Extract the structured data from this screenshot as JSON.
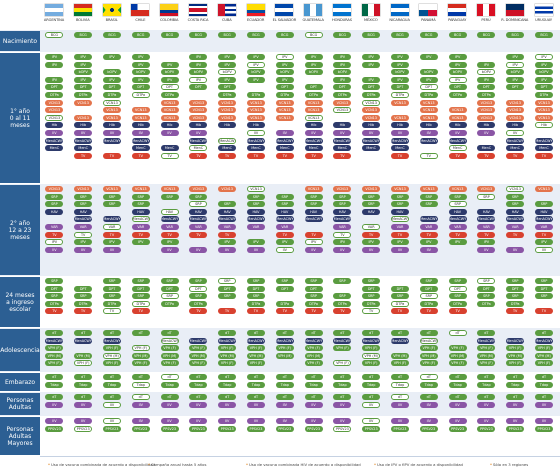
{
  "countries": [
    {
      "name": "ARGENTINA",
      "colors": [
        "#74acdf",
        "#ffffff",
        "#74acdf"
      ],
      "dir": "h"
    },
    {
      "name": "BOLIVIA",
      "colors": [
        "#d52b1e",
        "#f9e300",
        "#007934"
      ],
      "dir": "h"
    },
    {
      "name": "BRASIL",
      "colors": [
        "#009c3b",
        "#ffdf00",
        "#009c3b"
      ],
      "dir": "brazil"
    },
    {
      "name": "CHILE",
      "colors": [
        "#ffffff",
        "#d52b1e"
      ],
      "dir": "chile"
    },
    {
      "name": "COLOMBIA",
      "colors": [
        "#fcd116",
        "#fcd116",
        "#003893",
        "#ce1126"
      ],
      "dir": "h"
    },
    {
      "name": "COSTA RICA",
      "colors": [
        "#002b7f",
        "#ffffff",
        "#ce1126",
        "#ce1126",
        "#ffffff",
        "#002b7f"
      ],
      "dir": "h"
    },
    {
      "name": "CUBA",
      "colors": [
        "#002a8f",
        "#ffffff",
        "#002a8f",
        "#ffffff",
        "#002a8f"
      ],
      "dir": "cuba"
    },
    {
      "name": "ECUADOR",
      "colors": [
        "#ffdd00",
        "#ffdd00",
        "#034ea2",
        "#ed1c24"
      ],
      "dir": "h"
    },
    {
      "name": "EL SALVADOR",
      "colors": [
        "#0047ab",
        "#ffffff",
        "#0047ab"
      ],
      "dir": "h"
    },
    {
      "name": "GUATEMALA",
      "colors": [
        "#4997d0",
        "#ffffff",
        "#4997d0"
      ],
      "dir": "v"
    },
    {
      "name": "HONDURAS",
      "colors": [
        "#0073cf",
        "#ffffff",
        "#0073cf"
      ],
      "dir": "h"
    },
    {
      "name": "MÉXICO",
      "colors": [
        "#006847",
        "#ffffff",
        "#ce1126"
      ],
      "dir": "v"
    },
    {
      "name": "NICARAGUA",
      "colors": [
        "#0067c6",
        "#ffffff",
        "#0067c6"
      ],
      "dir": "h"
    },
    {
      "name": "PANAMÁ",
      "colors": [
        "#ffffff",
        "#d21034",
        "#005293",
        "#ffffff"
      ],
      "dir": "quad"
    },
    {
      "name": "PARAGUAY",
      "colors": [
        "#d52b1e",
        "#ffffff",
        "#0038a8"
      ],
      "dir": "h"
    },
    {
      "name": "PERÚ",
      "colors": [
        "#d91023",
        "#ffffff",
        "#d91023"
      ],
      "dir": "v"
    },
    {
      "name": "R. DOMINICANA",
      "colors": [
        "#002d62",
        "#ce1126",
        "#ce1126",
        "#002d62"
      ],
      "dir": "quad"
    },
    {
      "name": "URUGUAY",
      "colors": [
        "#ffffff",
        "#0038a8",
        "#ffffff",
        "#0038a8",
        "#ffffff"
      ],
      "dir": "h"
    }
  ],
  "sections": [
    {
      "label": "Nacimiento",
      "rows": [
        [
          "BCG",
          "HBV"
        ]
      ]
    },
    {
      "label": "1° año\n0 al 11\nmeses",
      "rows": [
        [
          "IPV"
        ],
        [
          "IPV"
        ],
        [
          "bOPV"
        ],
        [
          "IPV"
        ],
        [
          "DPT"
        ],
        [
          "DTPa"
        ],
        [
          "VCN13"
        ],
        [
          "VCN13"
        ],
        [
          "VCN13"
        ],
        [
          "Hib"
        ],
        [
          "IIV"
        ],
        [
          "MenACWY"
        ],
        [
          "MenC"
        ],
        [
          "TV"
        ]
      ]
    },
    {
      "label": "2° año\n12 a 23\nmeses",
      "rows": [
        [
          "VCN13"
        ],
        [
          "SRP"
        ],
        [
          "SRP"
        ],
        [
          "HAV"
        ],
        [
          "MenACWY"
        ],
        [
          "VAR"
        ],
        [
          "TV"
        ],
        [
          "IPV"
        ],
        [
          "IIV"
        ]
      ]
    },
    {
      "label": "24 meses\na ingreso\nescolar",
      "rows": [
        [
          "SRP"
        ],
        [
          "DPT"
        ],
        [
          "SRP"
        ],
        [
          "DTPa"
        ],
        [
          "TV"
        ]
      ]
    },
    {
      "label": "Adolescencia",
      "rows": [
        [
          "dT"
        ],
        [
          "MenACWY"
        ],
        [
          "VPH (F)"
        ],
        [
          "VPH (M)"
        ],
        [
          "VPH (F)"
        ]
      ]
    },
    {
      "label": "Embarazo",
      "rows": [
        [
          "dT"
        ],
        [
          "Tdap"
        ]
      ]
    },
    {
      "label": "Personas\nAdultas",
      "rows": [
        [
          "dT"
        ],
        [
          "IIV"
        ]
      ]
    },
    {
      "label": "Personas\nAdultas\nMayores",
      "rows": [
        [
          "IIV"
        ],
        [
          "PPSV23"
        ]
      ]
    }
  ],
  "legend": [
    {
      "mark": "*",
      "text": "Uso de vacuna combinada de acuerdo a disponibilidad"
    },
    {
      "mark": "*",
      "text": "Campaña anual hasta 5 años"
    },
    {
      "mark": "*",
      "text": "Uso de vacuna combinada HIV de acuerdo a disponibilidad"
    },
    {
      "mark": "*",
      "text": "Uso de IPV o fIPV de acuerdo a disponibilidad"
    },
    {
      "mark": "*",
      "text": "Sólo en 3 regiones"
    }
  ],
  "colors": {
    "green": "#5a9c40",
    "orange": "#e3744c",
    "navy": "#2d3a6b",
    "red": "#d8412f",
    "purple": "#8a55a5",
    "lightgreen": "#8cc466",
    "header_blue": "#2c5f93"
  }
}
